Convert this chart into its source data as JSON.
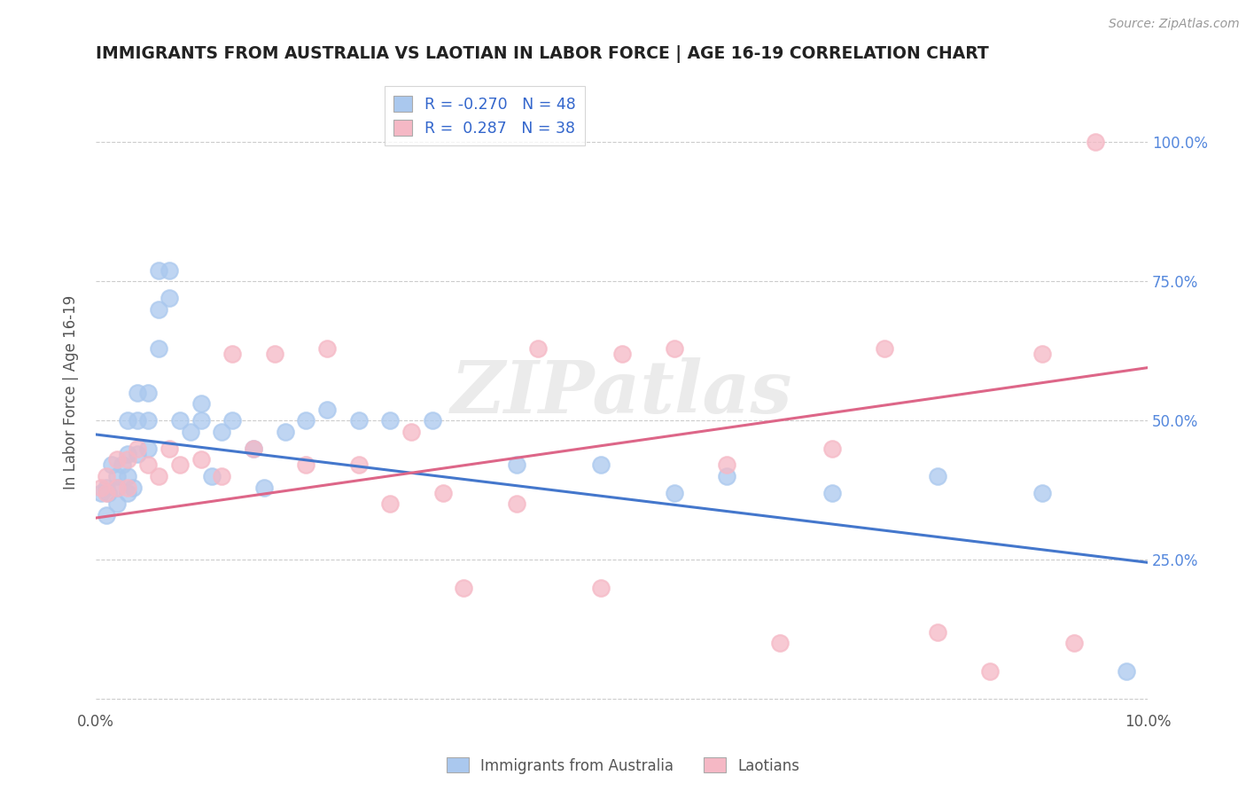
{
  "title": "IMMIGRANTS FROM AUSTRALIA VS LAOTIAN IN LABOR FORCE | AGE 16-19 CORRELATION CHART",
  "source": "Source: ZipAtlas.com",
  "ylabel": "In Labor Force | Age 16-19",
  "xlim": [
    0.0,
    0.1
  ],
  "ylim": [
    -0.02,
    1.12
  ],
  "ytick_vals": [
    0.0,
    0.25,
    0.5,
    0.75,
    1.0
  ],
  "ytick_labels": [
    "",
    "25.0%",
    "50.0%",
    "75.0%",
    "100.0%"
  ],
  "xtick_vals": [
    0.0,
    0.1
  ],
  "xtick_labels": [
    "0.0%",
    "10.0%"
  ],
  "legend_R_blue": "-0.270",
  "legend_N_blue": "48",
  "legend_R_pink": "0.287",
  "legend_N_pink": "38",
  "blue_color": "#aac8ee",
  "pink_color": "#f5b8c5",
  "blue_line_color": "#4477cc",
  "pink_line_color": "#dd6688",
  "watermark": "ZIPatlas",
  "blue_x": [
    0.0005,
    0.001,
    0.001,
    0.0012,
    0.0015,
    0.002,
    0.002,
    0.002,
    0.0025,
    0.003,
    0.003,
    0.003,
    0.003,
    0.0035,
    0.004,
    0.004,
    0.004,
    0.005,
    0.005,
    0.005,
    0.006,
    0.006,
    0.006,
    0.007,
    0.007,
    0.008,
    0.009,
    0.01,
    0.01,
    0.011,
    0.012,
    0.013,
    0.015,
    0.016,
    0.018,
    0.02,
    0.022,
    0.025,
    0.028,
    0.032,
    0.04,
    0.048,
    0.055,
    0.06,
    0.07,
    0.08,
    0.09,
    0.098
  ],
  "blue_y": [
    0.37,
    0.33,
    0.38,
    0.37,
    0.42,
    0.35,
    0.38,
    0.4,
    0.42,
    0.37,
    0.4,
    0.44,
    0.5,
    0.38,
    0.44,
    0.5,
    0.55,
    0.45,
    0.5,
    0.55,
    0.63,
    0.7,
    0.77,
    0.72,
    0.77,
    0.5,
    0.48,
    0.5,
    0.53,
    0.4,
    0.48,
    0.5,
    0.45,
    0.38,
    0.48,
    0.5,
    0.52,
    0.5,
    0.5,
    0.5,
    0.42,
    0.42,
    0.37,
    0.4,
    0.37,
    0.4,
    0.37,
    0.05
  ],
  "pink_x": [
    0.0005,
    0.001,
    0.001,
    0.002,
    0.002,
    0.003,
    0.003,
    0.004,
    0.005,
    0.006,
    0.007,
    0.008,
    0.01,
    0.012,
    0.013,
    0.015,
    0.017,
    0.02,
    0.022,
    0.025,
    0.028,
    0.03,
    0.033,
    0.035,
    0.04,
    0.042,
    0.048,
    0.05,
    0.055,
    0.06,
    0.065,
    0.07,
    0.075,
    0.08,
    0.085,
    0.09,
    0.093,
    0.095
  ],
  "pink_y": [
    0.38,
    0.37,
    0.4,
    0.38,
    0.43,
    0.38,
    0.43,
    0.45,
    0.42,
    0.4,
    0.45,
    0.42,
    0.43,
    0.4,
    0.62,
    0.45,
    0.62,
    0.42,
    0.63,
    0.42,
    0.35,
    0.48,
    0.37,
    0.2,
    0.35,
    0.63,
    0.2,
    0.62,
    0.63,
    0.42,
    0.1,
    0.45,
    0.63,
    0.12,
    0.05,
    0.62,
    0.1,
    1.0
  ],
  "blue_line_x": [
    0.0,
    0.1
  ],
  "blue_line_y": [
    0.475,
    0.245
  ],
  "pink_line_x": [
    0.0,
    0.1
  ],
  "pink_line_y": [
    0.325,
    0.595
  ]
}
